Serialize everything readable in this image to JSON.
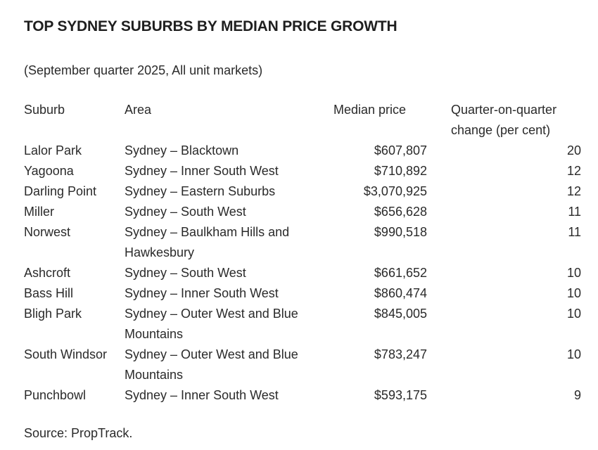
{
  "title": "TOP SYDNEY SUBURBS BY MEDIAN PRICE GROWTH",
  "subtitle": "(September quarter 2025, All unit markets)",
  "table": {
    "headers": [
      "Suburb",
      "Area",
      "Median price",
      "Quarter-on-quarter change (per cent)"
    ],
    "rows": [
      {
        "suburb": "Lalor Park",
        "area": "Sydney – Blacktown",
        "price": "$607,807",
        "change": "20"
      },
      {
        "suburb": "Yagoona",
        "area": "Sydney – Inner South West",
        "price": "$710,892",
        "change": "12"
      },
      {
        "suburb": "Darling Point",
        "area": "Sydney – Eastern Suburbs",
        "price": "$3,070,925",
        "change": "12"
      },
      {
        "suburb": "Miller",
        "area": "Sydney – South West",
        "price": "$656,628",
        "change": "11"
      },
      {
        "suburb": "Norwest",
        "area": "Sydney – Baulkham Hills and Hawkesbury",
        "price": "$990,518",
        "change": "11"
      },
      {
        "suburb": "Ashcroft",
        "area": "Sydney – South West",
        "price": "$661,652",
        "change": "10"
      },
      {
        "suburb": "Bass Hill",
        "area": "Sydney – Inner South West",
        "price": "$860,474",
        "change": "10"
      },
      {
        "suburb": "Bligh Park",
        "area": "Sydney – Outer West and Blue Mountains",
        "price": "$845,005",
        "change": "10"
      },
      {
        "suburb": "South Windsor",
        "area": "Sydney – Outer West and Blue Mountains",
        "price": "$783,247",
        "change": "10"
      },
      {
        "suburb": "Punchbowl",
        "area": "Sydney – Inner South West",
        "price": "$593,175",
        "change": "9"
      }
    ]
  },
  "source": "Source: PropTrack."
}
